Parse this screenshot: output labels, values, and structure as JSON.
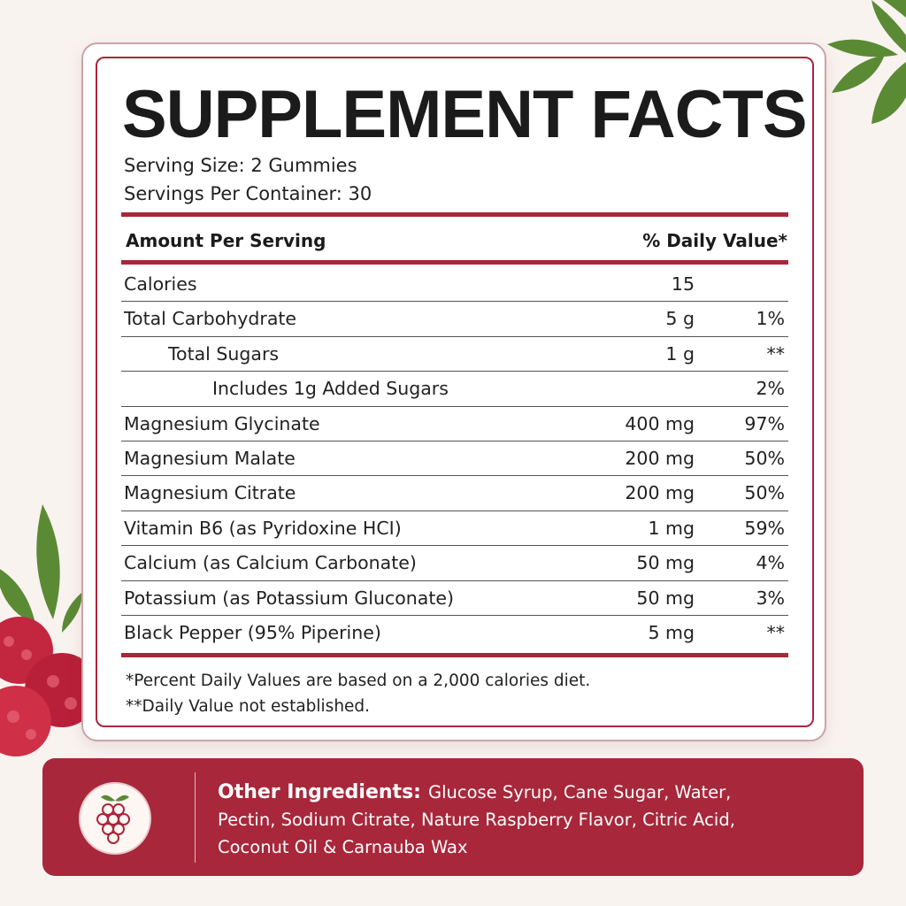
{
  "header": {
    "title": "SUPPLEMENT FACTS",
    "serving_size": "Serving Size: 2 Gummies",
    "servings_per_container": "Servings Per Container: 30"
  },
  "table": {
    "columns": [
      "Amount Per Serving",
      "% Daily Value*"
    ],
    "rows": [
      {
        "name": "Calories",
        "amount": "15"
      },
      {
        "name": "Total Carbohydrate",
        "amount": "5 g",
        "dv": "1%"
      },
      {
        "name": "Total Sugars",
        "amount": "1 g",
        "dv": "**"
      },
      {
        "name": "Includes 1g Added Sugars",
        "dv": "2%"
      },
      {
        "name": "Magnesium Glycinate",
        "amount": "400 mg",
        "dv": "97%"
      },
      {
        "name": "Magnesium Malate",
        "amount": "200 mg",
        "dv": "50%"
      },
      {
        "name": "Magnesium Citrate",
        "amount": "200 mg",
        "dv": "50%"
      },
      {
        "name": "Vitamin B6 (as Pyridoxine HCI)",
        "amount": "1 mg",
        "dv": "59%"
      },
      {
        "name": "Calcium (as Calcium Carbonate)",
        "amount": "50 mg",
        "dv": "4%"
      },
      {
        "name": "Potassium (as Potassium Gluconate)",
        "amount": "50 mg",
        "dv": "3%"
      },
      {
        "name": "Black Pepper (95% Piperine)",
        "amount": "5 mg",
        "dv": "**"
      }
    ]
  },
  "footnotes": [
    "*Percent Daily Values are based on a 2,000 calories diet.",
    "**Daily Value not established."
  ],
  "other_ingredients": {
    "label": "Other Ingredients:",
    "text": "Glucose Syrup, Cane Sugar,  Water, Pectin, Sodium Citrate, Nature Raspberry Flavor, Citric Acid, Coconut Oil & Carnauba Wax"
  }
}
